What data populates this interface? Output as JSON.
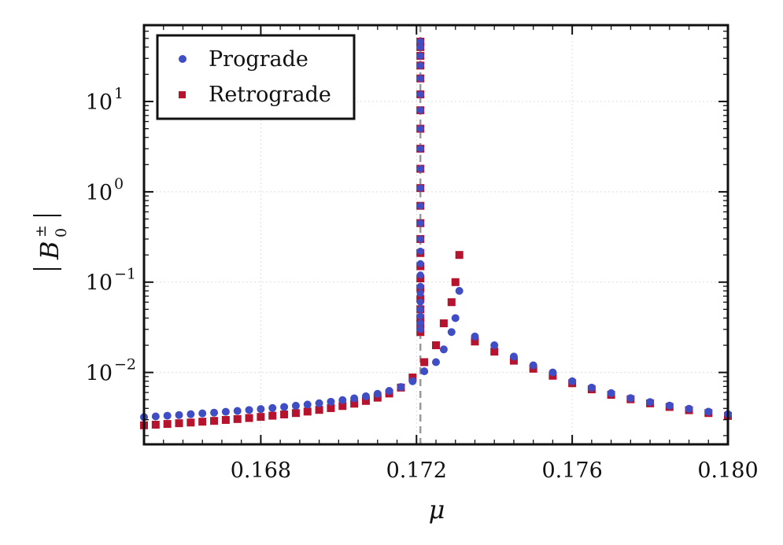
{
  "chart_data": {
    "type": "scatter",
    "title": "",
    "xlabel": "μ",
    "ylabel": "|B₀±|",
    "ylabel_parts": {
      "base": "B",
      "sub": "0",
      "sup": "±"
    },
    "xscale": "linear",
    "yscale": "log",
    "xlim": [
      0.165,
      0.18
    ],
    "ylim": [
      0.0016,
      70
    ],
    "grid": true,
    "legend_position": "top-left",
    "x_ticks": [
      {
        "value": 0.168,
        "label": "0.168"
      },
      {
        "value": 0.172,
        "label": "0.172"
      },
      {
        "value": 0.176,
        "label": "0.176"
      },
      {
        "value": 0.18,
        "label": "0.180"
      }
    ],
    "y_ticks": [
      {
        "value": 0.01,
        "base": "10",
        "exp": "−2"
      },
      {
        "value": 0.1,
        "base": "10",
        "exp": "−1"
      },
      {
        "value": 1,
        "base": "10",
        "exp": "0"
      },
      {
        "value": 10,
        "base": "10",
        "exp": "1"
      }
    ],
    "resonance_line": {
      "x": 0.1721,
      "style": "dashed",
      "color": "#999999"
    },
    "series": [
      {
        "name": "Prograde",
        "marker": "circle",
        "color": "#3f4ec4",
        "points": [
          [
            0.165,
            0.0032
          ],
          [
            0.1653,
            0.00326
          ],
          [
            0.1656,
            0.00332
          ],
          [
            0.1659,
            0.00338
          ],
          [
            0.1662,
            0.00345
          ],
          [
            0.1665,
            0.00352
          ],
          [
            0.1668,
            0.00359
          ],
          [
            0.1671,
            0.00367
          ],
          [
            0.1674,
            0.00375
          ],
          [
            0.1677,
            0.00384
          ],
          [
            0.168,
            0.00393
          ],
          [
            0.1683,
            0.00404
          ],
          [
            0.1686,
            0.00415
          ],
          [
            0.1689,
            0.00428
          ],
          [
            0.1692,
            0.00441
          ],
          [
            0.1695,
            0.00456
          ],
          [
            0.1698,
            0.00474
          ],
          [
            0.1701,
            0.00494
          ],
          [
            0.1704,
            0.00517
          ],
          [
            0.1707,
            0.00545
          ],
          [
            0.171,
            0.0058
          ],
          [
            0.1713,
            0.00625
          ],
          [
            0.1716,
            0.0069
          ],
          [
            0.1719,
            0.008
          ],
          [
            0.1722,
            0.0103
          ],
          [
            0.1725,
            0.013
          ],
          [
            0.1727,
            0.018
          ],
          [
            0.1729,
            0.028
          ],
          [
            0.173,
            0.04
          ],
          [
            0.1731,
            0.08
          ],
          [
            0.1735,
            0.025
          ],
          [
            0.174,
            0.02
          ],
          [
            0.1745,
            0.015
          ],
          [
            0.175,
            0.012
          ],
          [
            0.1755,
            0.01
          ],
          [
            0.176,
            0.008
          ],
          [
            0.1765,
            0.0068
          ],
          [
            0.177,
            0.0059
          ],
          [
            0.1775,
            0.0052
          ],
          [
            0.178,
            0.0047
          ],
          [
            0.1785,
            0.0043
          ],
          [
            0.179,
            0.00396
          ],
          [
            0.1795,
            0.00368
          ],
          [
            0.18,
            0.00345
          ]
        ]
      },
      {
        "name": "Retrograde",
        "marker": "square",
        "color": "#b5132e",
        "points": [
          [
            0.165,
            0.0026
          ],
          [
            0.1653,
            0.00264
          ],
          [
            0.1656,
            0.00269
          ],
          [
            0.1659,
            0.00274
          ],
          [
            0.1662,
            0.00279
          ],
          [
            0.1665,
            0.00285
          ],
          [
            0.1668,
            0.00291
          ],
          [
            0.1671,
            0.00298
          ],
          [
            0.1674,
            0.00305
          ],
          [
            0.1677,
            0.00313
          ],
          [
            0.168,
            0.00322
          ],
          [
            0.1683,
            0.00332
          ],
          [
            0.1686,
            0.00343
          ],
          [
            0.1689,
            0.00355
          ],
          [
            0.1692,
            0.00369
          ],
          [
            0.1695,
            0.00385
          ],
          [
            0.1698,
            0.00403
          ],
          [
            0.1701,
            0.00425
          ],
          [
            0.1704,
            0.00451
          ],
          [
            0.1707,
            0.00484
          ],
          [
            0.171,
            0.00526
          ],
          [
            0.1713,
            0.00585
          ],
          [
            0.1716,
            0.0068
          ],
          [
            0.1719,
            0.0088
          ],
          [
            0.1722,
            0.013
          ],
          [
            0.1725,
            0.02
          ],
          [
            0.1727,
            0.035
          ],
          [
            0.1729,
            0.06
          ],
          [
            0.173,
            0.1
          ],
          [
            0.1731,
            0.2
          ],
          [
            0.1735,
            0.022
          ],
          [
            0.174,
            0.017
          ],
          [
            0.1745,
            0.0135
          ],
          [
            0.175,
            0.011
          ],
          [
            0.1755,
            0.0092
          ],
          [
            0.176,
            0.0076
          ],
          [
            0.1765,
            0.0065
          ],
          [
            0.177,
            0.00565
          ],
          [
            0.1775,
            0.00505
          ],
          [
            0.178,
            0.00455
          ],
          [
            0.1785,
            0.00415
          ],
          [
            0.179,
            0.00382
          ],
          [
            0.1795,
            0.00355
          ],
          [
            0.18,
            0.0033
          ]
        ]
      }
    ],
    "resonance_spike": {
      "x": 0.1721,
      "prograde_y_values": [
        0.03,
        0.035,
        0.042,
        0.05,
        0.06,
        0.075,
        0.09,
        0.12,
        0.16,
        0.22,
        0.3,
        0.45,
        0.7,
        1.1,
        1.8,
        3,
        5,
        8,
        12,
        18,
        25,
        32,
        40,
        46
      ],
      "retrograde_y_values": [
        0.028,
        0.034,
        0.04,
        0.05,
        0.065,
        0.085,
        0.11,
        0.15,
        0.21,
        0.3,
        0.45,
        0.7,
        1.1,
        1.8,
        3,
        5,
        8,
        12,
        18,
        25,
        32,
        40,
        46
      ]
    }
  }
}
